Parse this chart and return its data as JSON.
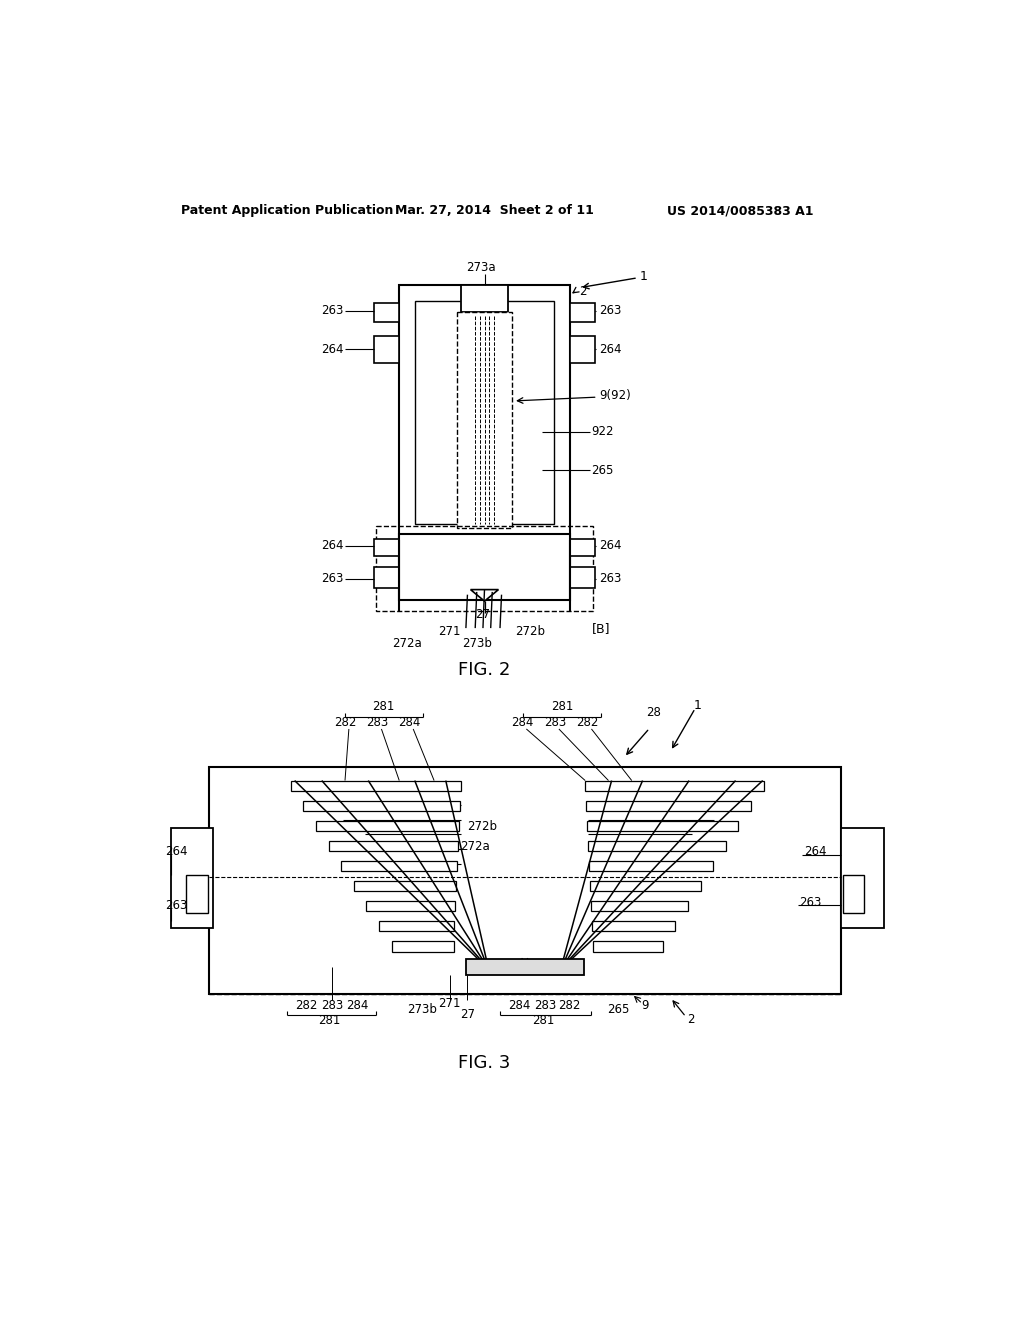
{
  "bg_color": "#ffffff",
  "line_color": "#000000",
  "header_left": "Patent Application Publication",
  "header_mid": "Mar. 27, 2014  Sheet 2 of 11",
  "header_right": "US 2014/0085383 A1",
  "fig2_label": "FIG. 2",
  "fig3_label": "FIG. 3"
}
